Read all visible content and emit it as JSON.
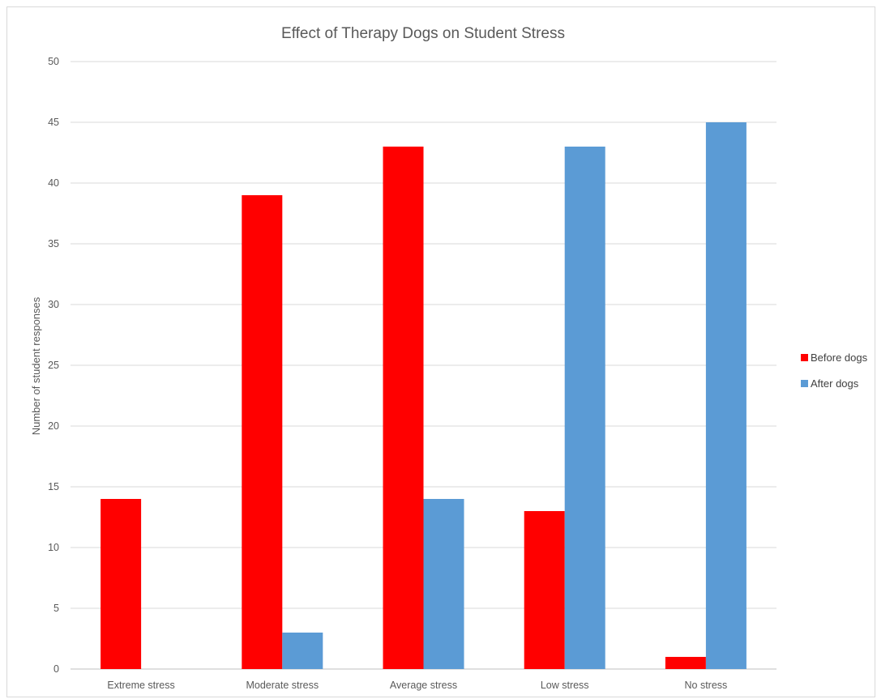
{
  "chart_data": {
    "type": "bar",
    "title": "Effect of Therapy Dogs on Student Stress",
    "xlabel": "",
    "ylabel": "Number of student responses",
    "ylim": [
      0,
      50
    ],
    "yticks": [
      0,
      5,
      10,
      15,
      20,
      25,
      30,
      35,
      40,
      45,
      50
    ],
    "grid": true,
    "legend_position": "right",
    "categories": [
      "Extreme stress",
      "Moderate stress",
      "Average stress",
      "Low stress",
      "No stress"
    ],
    "series": [
      {
        "name": "Before dogs",
        "color": "#ff0000",
        "values": [
          14,
          39,
          43,
          13,
          1
        ]
      },
      {
        "name": "After dogs",
        "color": "#5b9bd5",
        "values": [
          0,
          3,
          14,
          43,
          45
        ]
      }
    ]
  }
}
